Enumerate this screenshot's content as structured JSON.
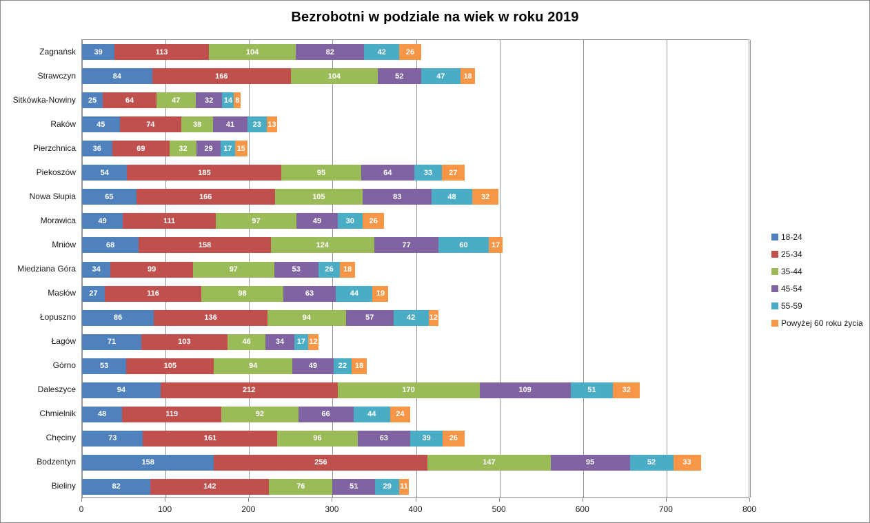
{
  "window": {
    "background": "#ffffff",
    "border_color": "#8c8c8c"
  },
  "chart_data": {
    "type": "bar",
    "variant": "horizontal-stacked",
    "title": "Bezrobotni w podziale na wiek w roku 2019",
    "categories": [
      "Zagnańsk",
      "Strawczyn",
      "Sitkówka-Nowiny",
      "Raków",
      "Pierzchnica",
      "Piekoszów",
      "Nowa Słupia",
      "Morawica",
      "Mniów",
      "Miedziana Góra",
      "Masłów",
      "Łopuszno",
      "Łagów",
      "Górno",
      "Daleszyce",
      "Chmielnik",
      "Chęciny",
      "Bodzentyn",
      "Bieliny"
    ],
    "series": [
      {
        "name": "18-24",
        "color": "#4F81BD",
        "values": [
          39,
          84,
          25,
          45,
          36,
          54,
          65,
          49,
          68,
          34,
          27,
          86,
          71,
          53,
          94,
          48,
          73,
          158,
          82
        ]
      },
      {
        "name": "25-34",
        "color": "#C0504D",
        "values": [
          113,
          166,
          64,
          74,
          69,
          185,
          166,
          111,
          158,
          99,
          116,
          136,
          103,
          105,
          212,
          119,
          161,
          256,
          142
        ]
      },
      {
        "name": "35-44",
        "color": "#9BBB59",
        "values": [
          104,
          104,
          47,
          38,
          32,
          95,
          105,
          97,
          124,
          97,
          98,
          94,
          46,
          94,
          170,
          92,
          96,
          147,
          76
        ]
      },
      {
        "name": "45-54",
        "color": "#8064A2",
        "values": [
          82,
          52,
          32,
          41,
          29,
          64,
          83,
          49,
          77,
          53,
          63,
          57,
          34,
          49,
          109,
          66,
          63,
          95,
          51
        ]
      },
      {
        "name": "55-59",
        "color": "#4BACC6",
        "values": [
          42,
          47,
          14,
          23,
          17,
          33,
          48,
          30,
          60,
          26,
          44,
          42,
          17,
          22,
          51,
          44,
          39,
          52,
          29
        ]
      },
      {
        "name": "Powyżej 60 roku życia",
        "color": "#F79646",
        "values": [
          26,
          18,
          8,
          13,
          15,
          27,
          32,
          26,
          17,
          18,
          19,
          12,
          12,
          18,
          32,
          24,
          26,
          33,
          11
        ]
      }
    ],
    "x_axis": {
      "min": 0,
      "max": 800,
      "step": 100,
      "ticks": [
        "0",
        "100",
        "200",
        "300",
        "400",
        "500",
        "600",
        "700",
        "800"
      ]
    },
    "legend_position": "right",
    "gridlines": true,
    "grid_color": "#969696",
    "axis_color": "#808080",
    "data_label_color": "#ffffff"
  }
}
